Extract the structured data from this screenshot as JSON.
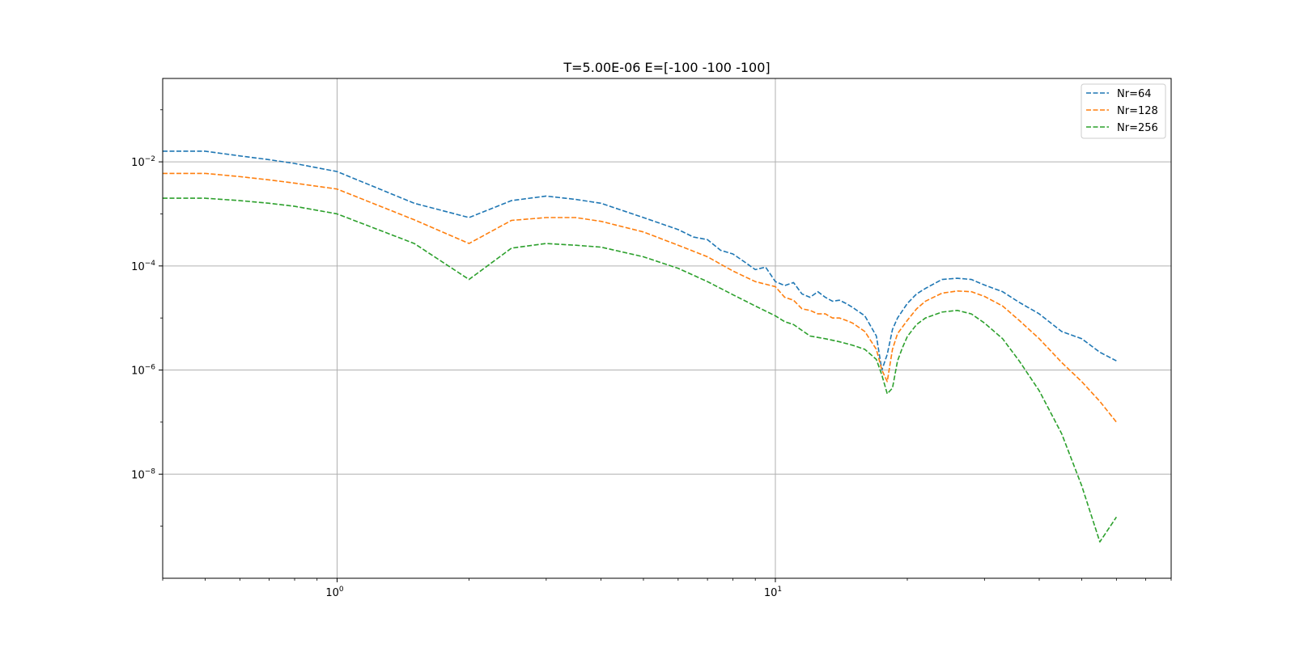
{
  "chart_data": {
    "type": "line",
    "title": "T=5.00E-06 E=[-100 -100 -100]",
    "xlabel": "",
    "ylabel": "",
    "xscale": "log",
    "yscale": "log",
    "xlim": [
      0.4,
      80
    ],
    "ylim": [
      1e-10,
      0.4
    ],
    "grid": true,
    "legend_position": "top-right",
    "x_ticks": [
      {
        "value": 1,
        "base": "10",
        "exp": "0"
      },
      {
        "value": 10,
        "base": "10",
        "exp": "1"
      }
    ],
    "y_ticks": [
      {
        "value": 0.01,
        "base": "10",
        "exp": "−2"
      },
      {
        "value": 0.0001,
        "base": "10",
        "exp": "−4"
      },
      {
        "value": 1e-06,
        "base": "10",
        "exp": "−6"
      },
      {
        "value": 1e-08,
        "base": "10",
        "exp": "−8"
      }
    ],
    "series": [
      {
        "name": "Nr=64",
        "color": "#1f77b4",
        "x": [
          0.4,
          0.5,
          0.6,
          0.7,
          0.8,
          1.0,
          1.5,
          2.0,
          2.5,
          3.0,
          3.5,
          4.0,
          5.0,
          6.0,
          6.5,
          7.0,
          7.5,
          8.0,
          8.5,
          9.0,
          9.5,
          10.0,
          10.5,
          11.0,
          11.5,
          12.0,
          12.5,
          13.0,
          13.5,
          14.0,
          14.5,
          15.0,
          16.0,
          17.0,
          17.5,
          18.0,
          18.5,
          19.0,
          20.0,
          21.0,
          22.0,
          24.0,
          26.0,
          28.0,
          30.0,
          33.0,
          36.0,
          40.0,
          45.0,
          50.0,
          55.0,
          60.0
        ],
        "y": [
          0.016,
          0.016,
          0.013,
          0.011,
          0.0093,
          0.0065,
          0.0016,
          0.00085,
          0.0018,
          0.0022,
          0.0019,
          0.0016,
          0.00085,
          0.0005,
          0.00036,
          0.00032,
          0.0002,
          0.00017,
          0.00012,
          8.5e-05,
          9.5e-05,
          5e-05,
          4.2e-05,
          4.8e-05,
          2.9e-05,
          2.5e-05,
          3.2e-05,
          2.5e-05,
          2.1e-05,
          2.2e-05,
          1.9e-05,
          1.6e-05,
          1.1e-05,
          4.5e-06,
          1e-06,
          2e-06,
          6e-06,
          1e-05,
          1.9e-05,
          2.9e-05,
          3.7e-05,
          5.5e-05,
          5.8e-05,
          5.5e-05,
          4.3e-05,
          3.2e-05,
          2e-05,
          1.2e-05,
          5.5e-06,
          4e-06,
          2.2e-06,
          1.5e-06
        ]
      },
      {
        "name": "Nr=128",
        "color": "#ff7f0e",
        "x": [
          0.4,
          0.5,
          0.6,
          0.7,
          0.8,
          1.0,
          1.5,
          2.0,
          2.5,
          3.0,
          3.5,
          4.0,
          5.0,
          6.0,
          7.0,
          8.0,
          9.0,
          10.0,
          10.5,
          11.0,
          11.5,
          12.0,
          12.5,
          13.0,
          13.5,
          14.0,
          14.5,
          15.0,
          16.0,
          17.0,
          17.5,
          18.0,
          18.5,
          19.0,
          20.0,
          21.0,
          22.0,
          24.0,
          26.0,
          28.0,
          30.0,
          33.0,
          36.0,
          40.0,
          45.0,
          50.0,
          55.0,
          60.0
        ],
        "y": [
          0.006,
          0.006,
          0.0052,
          0.0045,
          0.0039,
          0.003,
          0.00077,
          0.00027,
          0.00075,
          0.00085,
          0.00085,
          0.00072,
          0.00045,
          0.00025,
          0.00015,
          8e-05,
          5e-05,
          4e-05,
          2.5e-05,
          2.2e-05,
          1.5e-05,
          1.4e-05,
          1.2e-05,
          1.2e-05,
          1e-05,
          1e-05,
          9e-06,
          8e-06,
          5.5e-06,
          2.5e-06,
          1e-06,
          6e-07,
          2.5e-06,
          5e-06,
          9e-06,
          1.5e-05,
          2.1e-05,
          3e-05,
          3.3e-05,
          3.2e-05,
          2.6e-05,
          1.7e-05,
          9e-06,
          4e-06,
          1.4e-06,
          6e-07,
          2.5e-07,
          1e-07
        ]
      },
      {
        "name": "Nr=256",
        "color": "#2ca02c",
        "x": [
          0.4,
          0.5,
          0.6,
          0.7,
          0.8,
          1.0,
          1.5,
          2.0,
          2.5,
          3.0,
          3.5,
          4.0,
          5.0,
          6.0,
          7.0,
          8.0,
          9.0,
          10.0,
          10.5,
          11.0,
          12.0,
          13.0,
          14.0,
          15.0,
          16.0,
          17.0,
          17.5,
          18.0,
          18.5,
          19.0,
          19.5,
          20.0,
          21.0,
          22.0,
          24.0,
          26.0,
          28.0,
          30.0,
          33.0,
          36.0,
          40.0,
          45.0,
          50.0,
          55.0,
          60.0
        ],
        "y": [
          0.002,
          0.002,
          0.0018,
          0.0016,
          0.0014,
          0.001,
          0.00027,
          5.5e-05,
          0.00022,
          0.00027,
          0.00025,
          0.00023,
          0.00015,
          9e-05,
          5e-05,
          2.8e-05,
          1.7e-05,
          1.1e-05,
          8.5e-06,
          7.5e-06,
          4.5e-06,
          4e-06,
          3.5e-06,
          3e-06,
          2.5e-06,
          1.6e-06,
          8e-07,
          3.5e-07,
          4.5e-07,
          1.5e-06,
          2.7e-06,
          4.4e-06,
          7.5e-06,
          1e-05,
          1.3e-05,
          1.4e-05,
          1.2e-05,
          8e-06,
          4e-06,
          1.5e-06,
          4e-07,
          6e-08,
          6e-09,
          5e-10,
          1.5e-09
        ]
      }
    ]
  }
}
